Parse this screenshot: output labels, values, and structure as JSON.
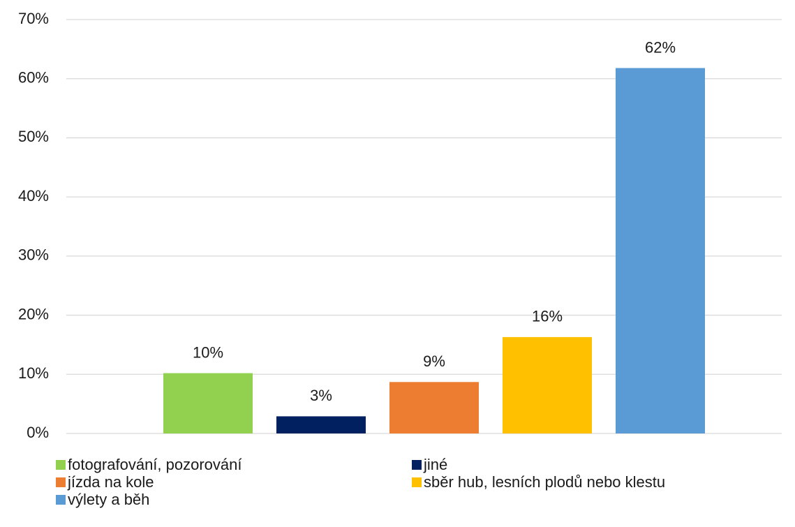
{
  "chart_data": {
    "type": "bar",
    "categories": [
      null
    ],
    "series": [
      {
        "name": "fotografování, pozorování",
        "color": "#92d050",
        "values": [
          10.2
        ],
        "value_labels": [
          "10%"
        ]
      },
      {
        "name": "jiné",
        "color": "#002060",
        "values": [
          2.9
        ],
        "value_labels": [
          "3%"
        ]
      },
      {
        "name": "jízda na kole",
        "color": "#ed7d31",
        "values": [
          8.7
        ],
        "value_labels": [
          "9%"
        ]
      },
      {
        "name": "sběr hub, lesních plodů nebo klestu",
        "color": "#ffc000",
        "values": [
          16.3
        ],
        "value_labels": [
          "16%"
        ]
      },
      {
        "name": "výlety a běh",
        "color": "#5b9bd5",
        "values": [
          61.8
        ],
        "value_labels": [
          "62%"
        ]
      }
    ],
    "ylim": [
      0,
      70
    ],
    "yticks": [
      {
        "value": 0,
        "label": "0%"
      },
      {
        "value": 10,
        "label": "10%"
      },
      {
        "value": 20,
        "label": "20%"
      },
      {
        "value": 30,
        "label": "30%"
      },
      {
        "value": 40,
        "label": "40%"
      },
      {
        "value": 50,
        "label": "50%"
      },
      {
        "value": 60,
        "label": "60%"
      },
      {
        "value": 70,
        "label": "70%"
      }
    ],
    "grid": true,
    "legend": "bottom"
  }
}
